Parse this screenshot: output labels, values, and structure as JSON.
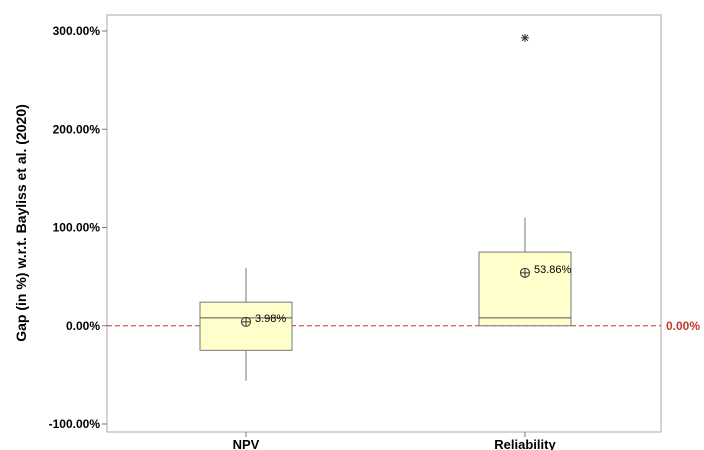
{
  "chart_data": {
    "type": "boxplot",
    "ylabel": "Gap (in %) w.r.t. Bayliss et al. (2020)",
    "ylim": [
      -100,
      300
    ],
    "yticks": [
      -100,
      0,
      100,
      200,
      300
    ],
    "ytick_labels": [
      "-100.00%",
      "0.00%",
      "100.00%",
      "200.00%",
      "300.00%"
    ],
    "categories": [
      "NPV",
      "Reliability"
    ],
    "boxes": [
      {
        "category": "NPV",
        "whisker_low": -56,
        "q1": -25,
        "median": 8,
        "q3": 24,
        "whisker_high": 59,
        "mean": 3.98,
        "mean_label": "3.98%",
        "outliers": []
      },
      {
        "category": "Reliability",
        "whisker_low": 0,
        "q1": 0,
        "median": 8,
        "q3": 75,
        "whisker_high": 110,
        "mean": 53.86,
        "mean_label": "53.86%",
        "outliers": [
          293
        ]
      }
    ],
    "reference_line": {
      "value": 0,
      "label": "0.00%",
      "color": "#c0392b",
      "style": "dashed"
    },
    "colors": {
      "box_fill": "#ffffcc",
      "box_stroke": "#777777",
      "whisker": "#777777",
      "axis": "#999999",
      "ref": "#c0392b"
    },
    "grid": false
  }
}
